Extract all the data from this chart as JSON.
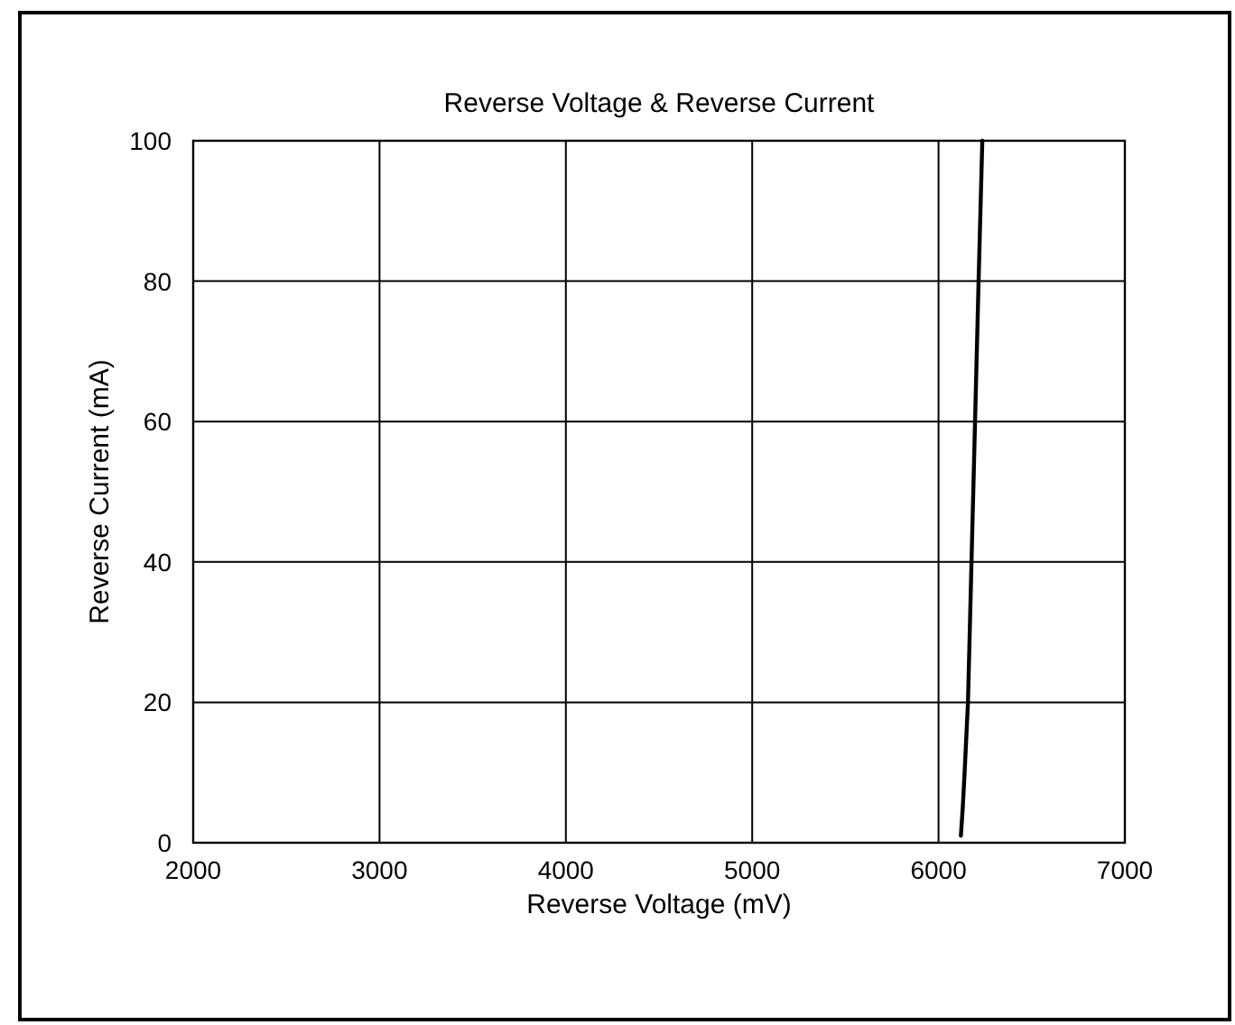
{
  "chart_data": {
    "type": "line",
    "title": "Reverse Voltage & Reverse Current",
    "xlabel": "Reverse Voltage (mV)",
    "ylabel": "Reverse Current (mA)",
    "x": [
      6120,
      6130,
      6140,
      6158,
      6177,
      6196,
      6215,
      6235
    ],
    "series": [
      {
        "color": "#000000",
        "values": [
          1,
          5,
          10,
          20,
          40,
          60,
          80,
          100
        ]
      }
    ],
    "xlim": [
      2000,
      7000
    ],
    "xticks": [
      2000,
      3000,
      4000,
      5000,
      6000,
      7000
    ],
    "ylim": [
      0,
      100
    ],
    "yticks": [
      0,
      20,
      40,
      60,
      80,
      100
    ],
    "grid": true,
    "marker": "none",
    "line_style": "solid"
  }
}
